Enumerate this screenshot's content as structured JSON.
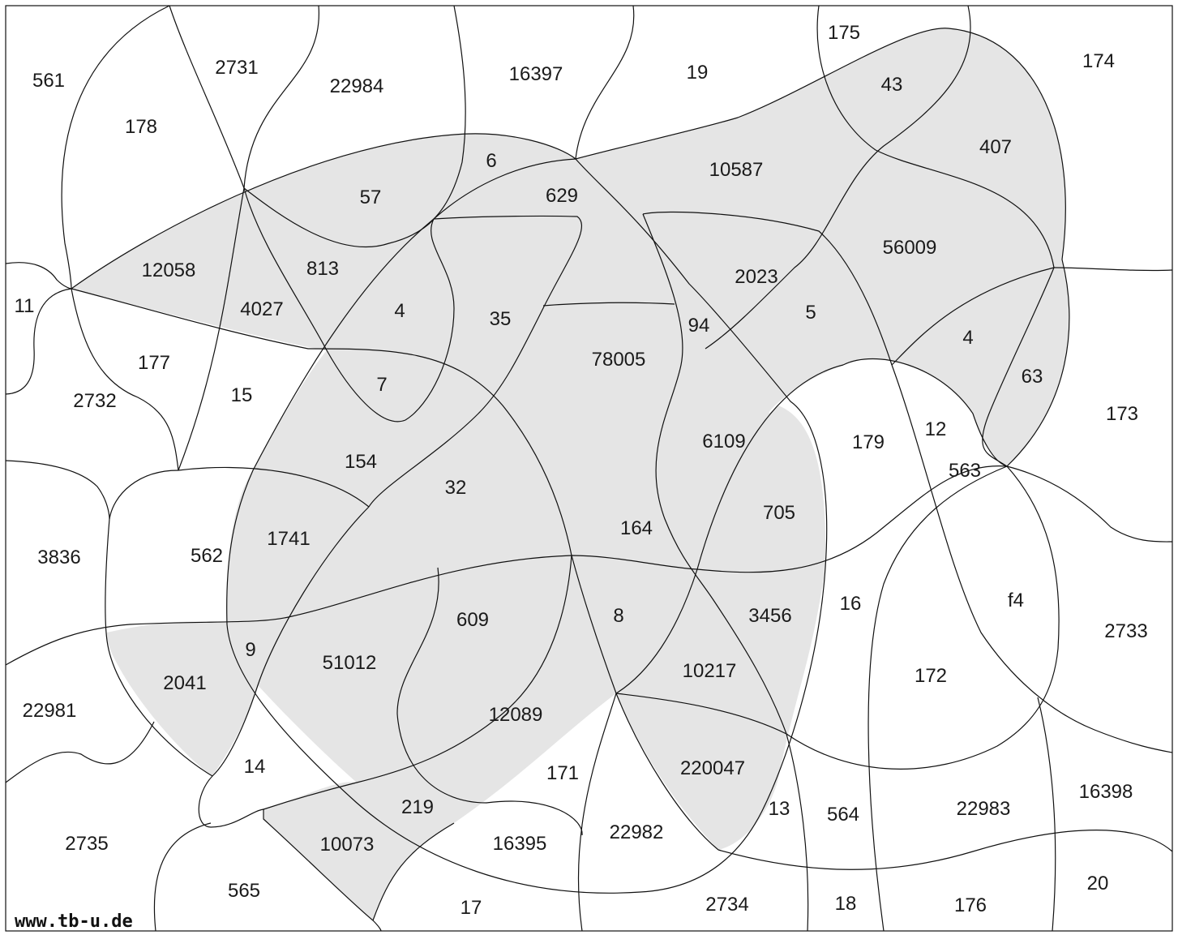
{
  "colors": {
    "shade": "#e5e5e5",
    "stroke": "#111111",
    "text": "#1a1a1a",
    "background": "#ffffff"
  },
  "credit": "www.tb-u.de",
  "regions": [
    {
      "label": "561"
    },
    {
      "label": "2731"
    },
    {
      "label": "22984"
    },
    {
      "label": "16397"
    },
    {
      "label": "19"
    },
    {
      "label": "175"
    },
    {
      "label": "174"
    },
    {
      "label": "178"
    },
    {
      "label": "43"
    },
    {
      "label": "407"
    },
    {
      "label": "6"
    },
    {
      "label": "10587"
    },
    {
      "label": "57"
    },
    {
      "label": "629"
    },
    {
      "label": "12058"
    },
    {
      "label": "813"
    },
    {
      "label": "56009"
    },
    {
      "label": "2023"
    },
    {
      "label": "11"
    },
    {
      "label": "4027"
    },
    {
      "label": "4"
    },
    {
      "label": "35"
    },
    {
      "label": "5"
    },
    {
      "label": "94"
    },
    {
      "label": "4"
    },
    {
      "label": "177"
    },
    {
      "label": "78005"
    },
    {
      "label": "63"
    },
    {
      "label": "7"
    },
    {
      "label": "2732"
    },
    {
      "label": "15"
    },
    {
      "label": "173"
    },
    {
      "label": "12"
    },
    {
      "label": "6109"
    },
    {
      "label": "179"
    },
    {
      "label": "154"
    },
    {
      "label": "563"
    },
    {
      "label": "32"
    },
    {
      "label": "705"
    },
    {
      "label": "164"
    },
    {
      "label": "1741"
    },
    {
      "label": "3836"
    },
    {
      "label": "562"
    },
    {
      "label": "f4"
    },
    {
      "label": "16"
    },
    {
      "label": "609"
    },
    {
      "label": "8"
    },
    {
      "label": "3456"
    },
    {
      "label": "2733"
    },
    {
      "label": "9"
    },
    {
      "label": "51012"
    },
    {
      "label": "10217"
    },
    {
      "label": "172"
    },
    {
      "label": "2041"
    },
    {
      "label": "22981"
    },
    {
      "label": "12089"
    },
    {
      "label": "14"
    },
    {
      "label": "171"
    },
    {
      "label": "220047"
    },
    {
      "label": "16398"
    },
    {
      "label": "219"
    },
    {
      "label": "13"
    },
    {
      "label": "564"
    },
    {
      "label": "22983"
    },
    {
      "label": "2735"
    },
    {
      "label": "10073"
    },
    {
      "label": "16395"
    },
    {
      "label": "22982"
    },
    {
      "label": "565"
    },
    {
      "label": "20"
    },
    {
      "label": "17"
    },
    {
      "label": "2734"
    },
    {
      "label": "18"
    },
    {
      "label": "176"
    }
  ]
}
